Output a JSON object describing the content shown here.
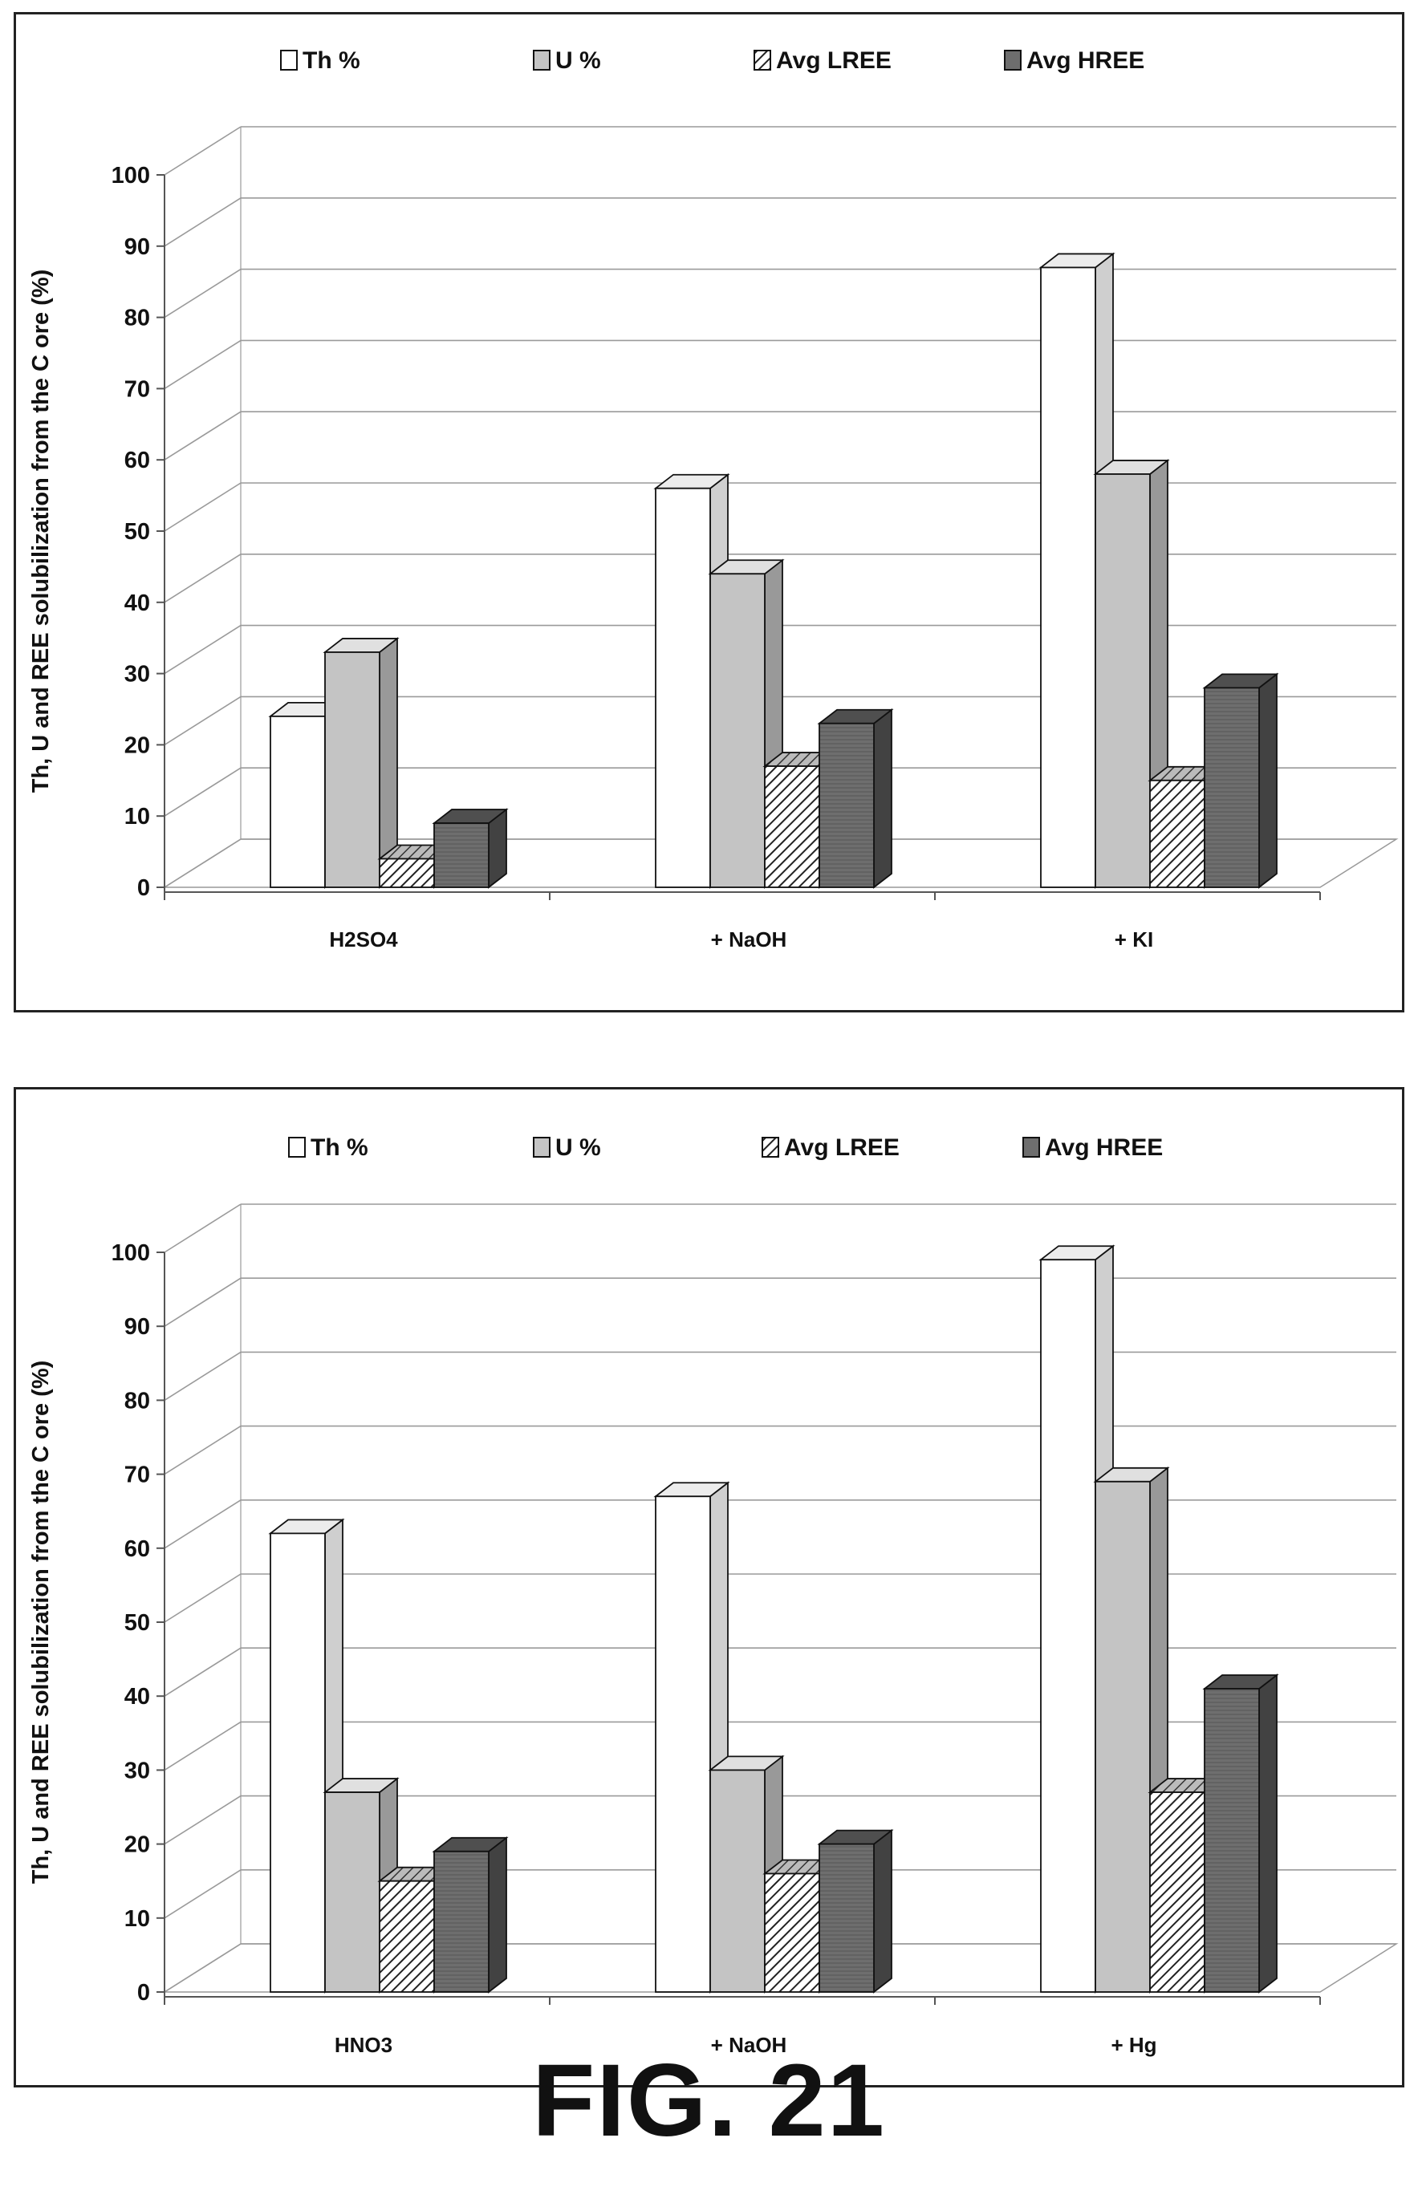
{
  "figure_label": "FIG. 21",
  "colors": {
    "th": "#ffffff",
    "u": "#c4c4c4",
    "lree": "hatched",
    "hree": "#6e6e6e"
  },
  "chart_data": [
    {
      "type": "bar",
      "style": "3d-clustered-column",
      "ylabel": "Th, U and REE solubilization from the C ore (%)",
      "ylim": [
        0,
        100
      ],
      "yticks": [
        0,
        10,
        20,
        30,
        40,
        50,
        60,
        70,
        80,
        90,
        100
      ],
      "grid": true,
      "legend": "top",
      "categories": [
        "H2SO4",
        "+ NaOH",
        "+ KI"
      ],
      "series": [
        {
          "name": "Th %",
          "values": [
            24,
            56,
            87
          ]
        },
        {
          "name": "U %",
          "values": [
            33,
            44,
            58
          ]
        },
        {
          "name": "Avg LREE",
          "values": [
            4,
            17,
            15
          ]
        },
        {
          "name": "Avg HREE",
          "values": [
            9,
            23,
            28
          ]
        }
      ]
    },
    {
      "type": "bar",
      "style": "3d-clustered-column",
      "ylabel": "Th, U and REE solubilization from the C ore (%)",
      "ylim": [
        0,
        100
      ],
      "yticks": [
        0,
        10,
        20,
        30,
        40,
        50,
        60,
        70,
        80,
        90,
        100
      ],
      "grid": true,
      "legend": "top",
      "categories": [
        "HNO3",
        "+ NaOH",
        "+ Hg"
      ],
      "series": [
        {
          "name": "Th %",
          "values": [
            62,
            67,
            99
          ]
        },
        {
          "name": "U %",
          "values": [
            27,
            30,
            69
          ]
        },
        {
          "name": "Avg LREE",
          "values": [
            15,
            16,
            27
          ]
        },
        {
          "name": "Avg HREE",
          "values": [
            19,
            20,
            41
          ]
        }
      ]
    }
  ]
}
